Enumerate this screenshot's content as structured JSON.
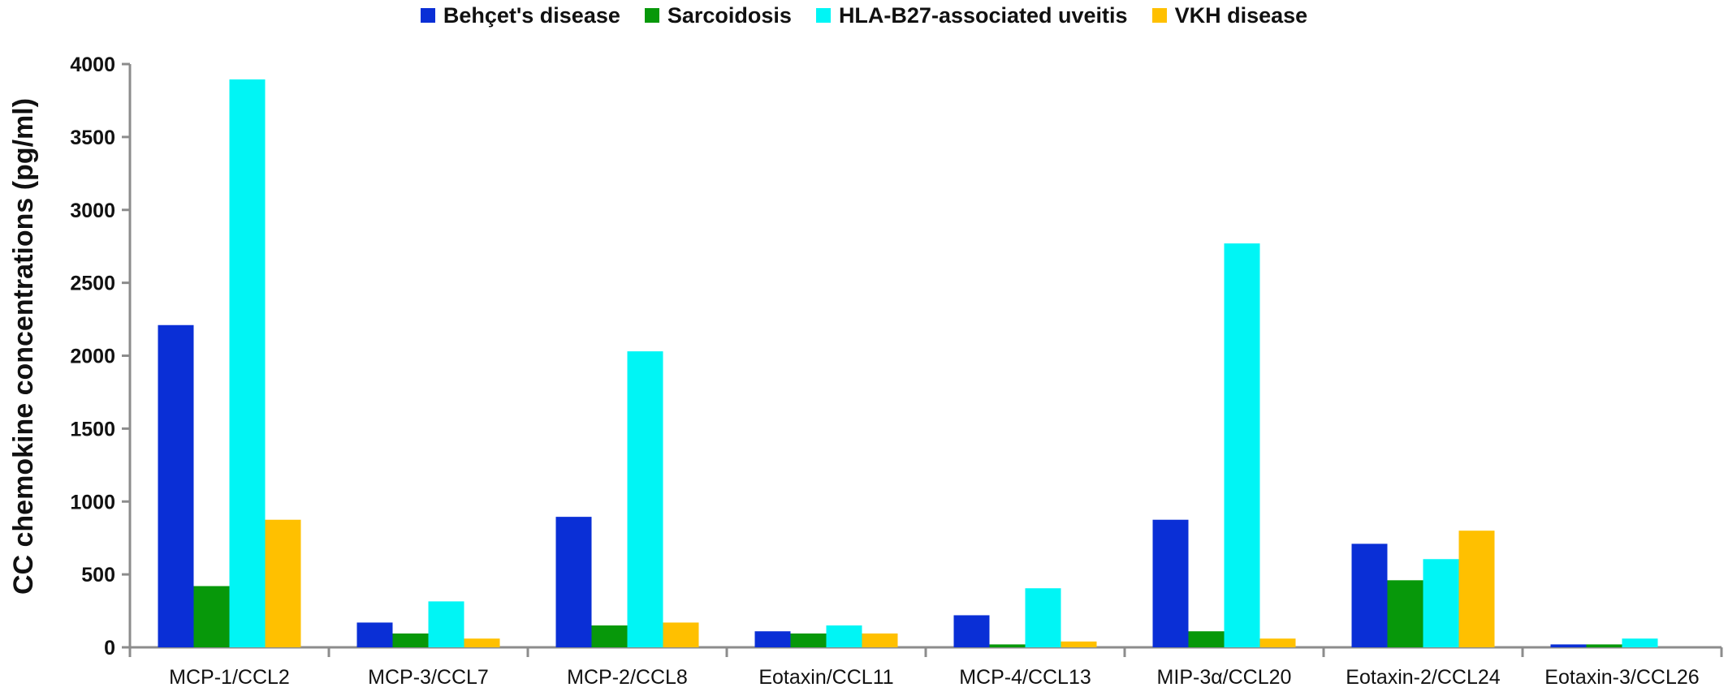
{
  "chart_data": {
    "type": "bar",
    "title": "",
    "xlabel": "",
    "ylabel": "CC chemokine concentrations (pg/ml)",
    "ylim": [
      0,
      4000
    ],
    "yticks": [
      0,
      500,
      1000,
      1500,
      2000,
      2500,
      3000,
      3500,
      4000
    ],
    "grid": false,
    "legend_position": "top-center",
    "categories": [
      "MCP-1/CCL2",
      "MCP-3/CCL7",
      "MCP-2/CCL8",
      "Eotaxin/CCL11",
      "MCP-4/CCL13",
      "MIP-3α/CCL20",
      "Eotaxin-2/CCL24",
      "Eotaxin-3/CCL26"
    ],
    "series": [
      {
        "name": "Behçet's disease",
        "color": "#0a2fd6",
        "values": [
          2210,
          170,
          895,
          110,
          220,
          875,
          710,
          20
        ]
      },
      {
        "name": "Sarcoidosis",
        "color": "#07980a",
        "values": [
          420,
          95,
          150,
          95,
          20,
          110,
          460,
          20
        ]
      },
      {
        "name": "HLA-B27-associated uveitis",
        "color": "#00f5f5",
        "values": [
          3895,
          315,
          2030,
          150,
          405,
          2770,
          605,
          60
        ]
      },
      {
        "name": "VKH disease",
        "color": "#ffc000",
        "values": [
          875,
          60,
          170,
          95,
          40,
          60,
          800,
          0
        ]
      }
    ]
  }
}
